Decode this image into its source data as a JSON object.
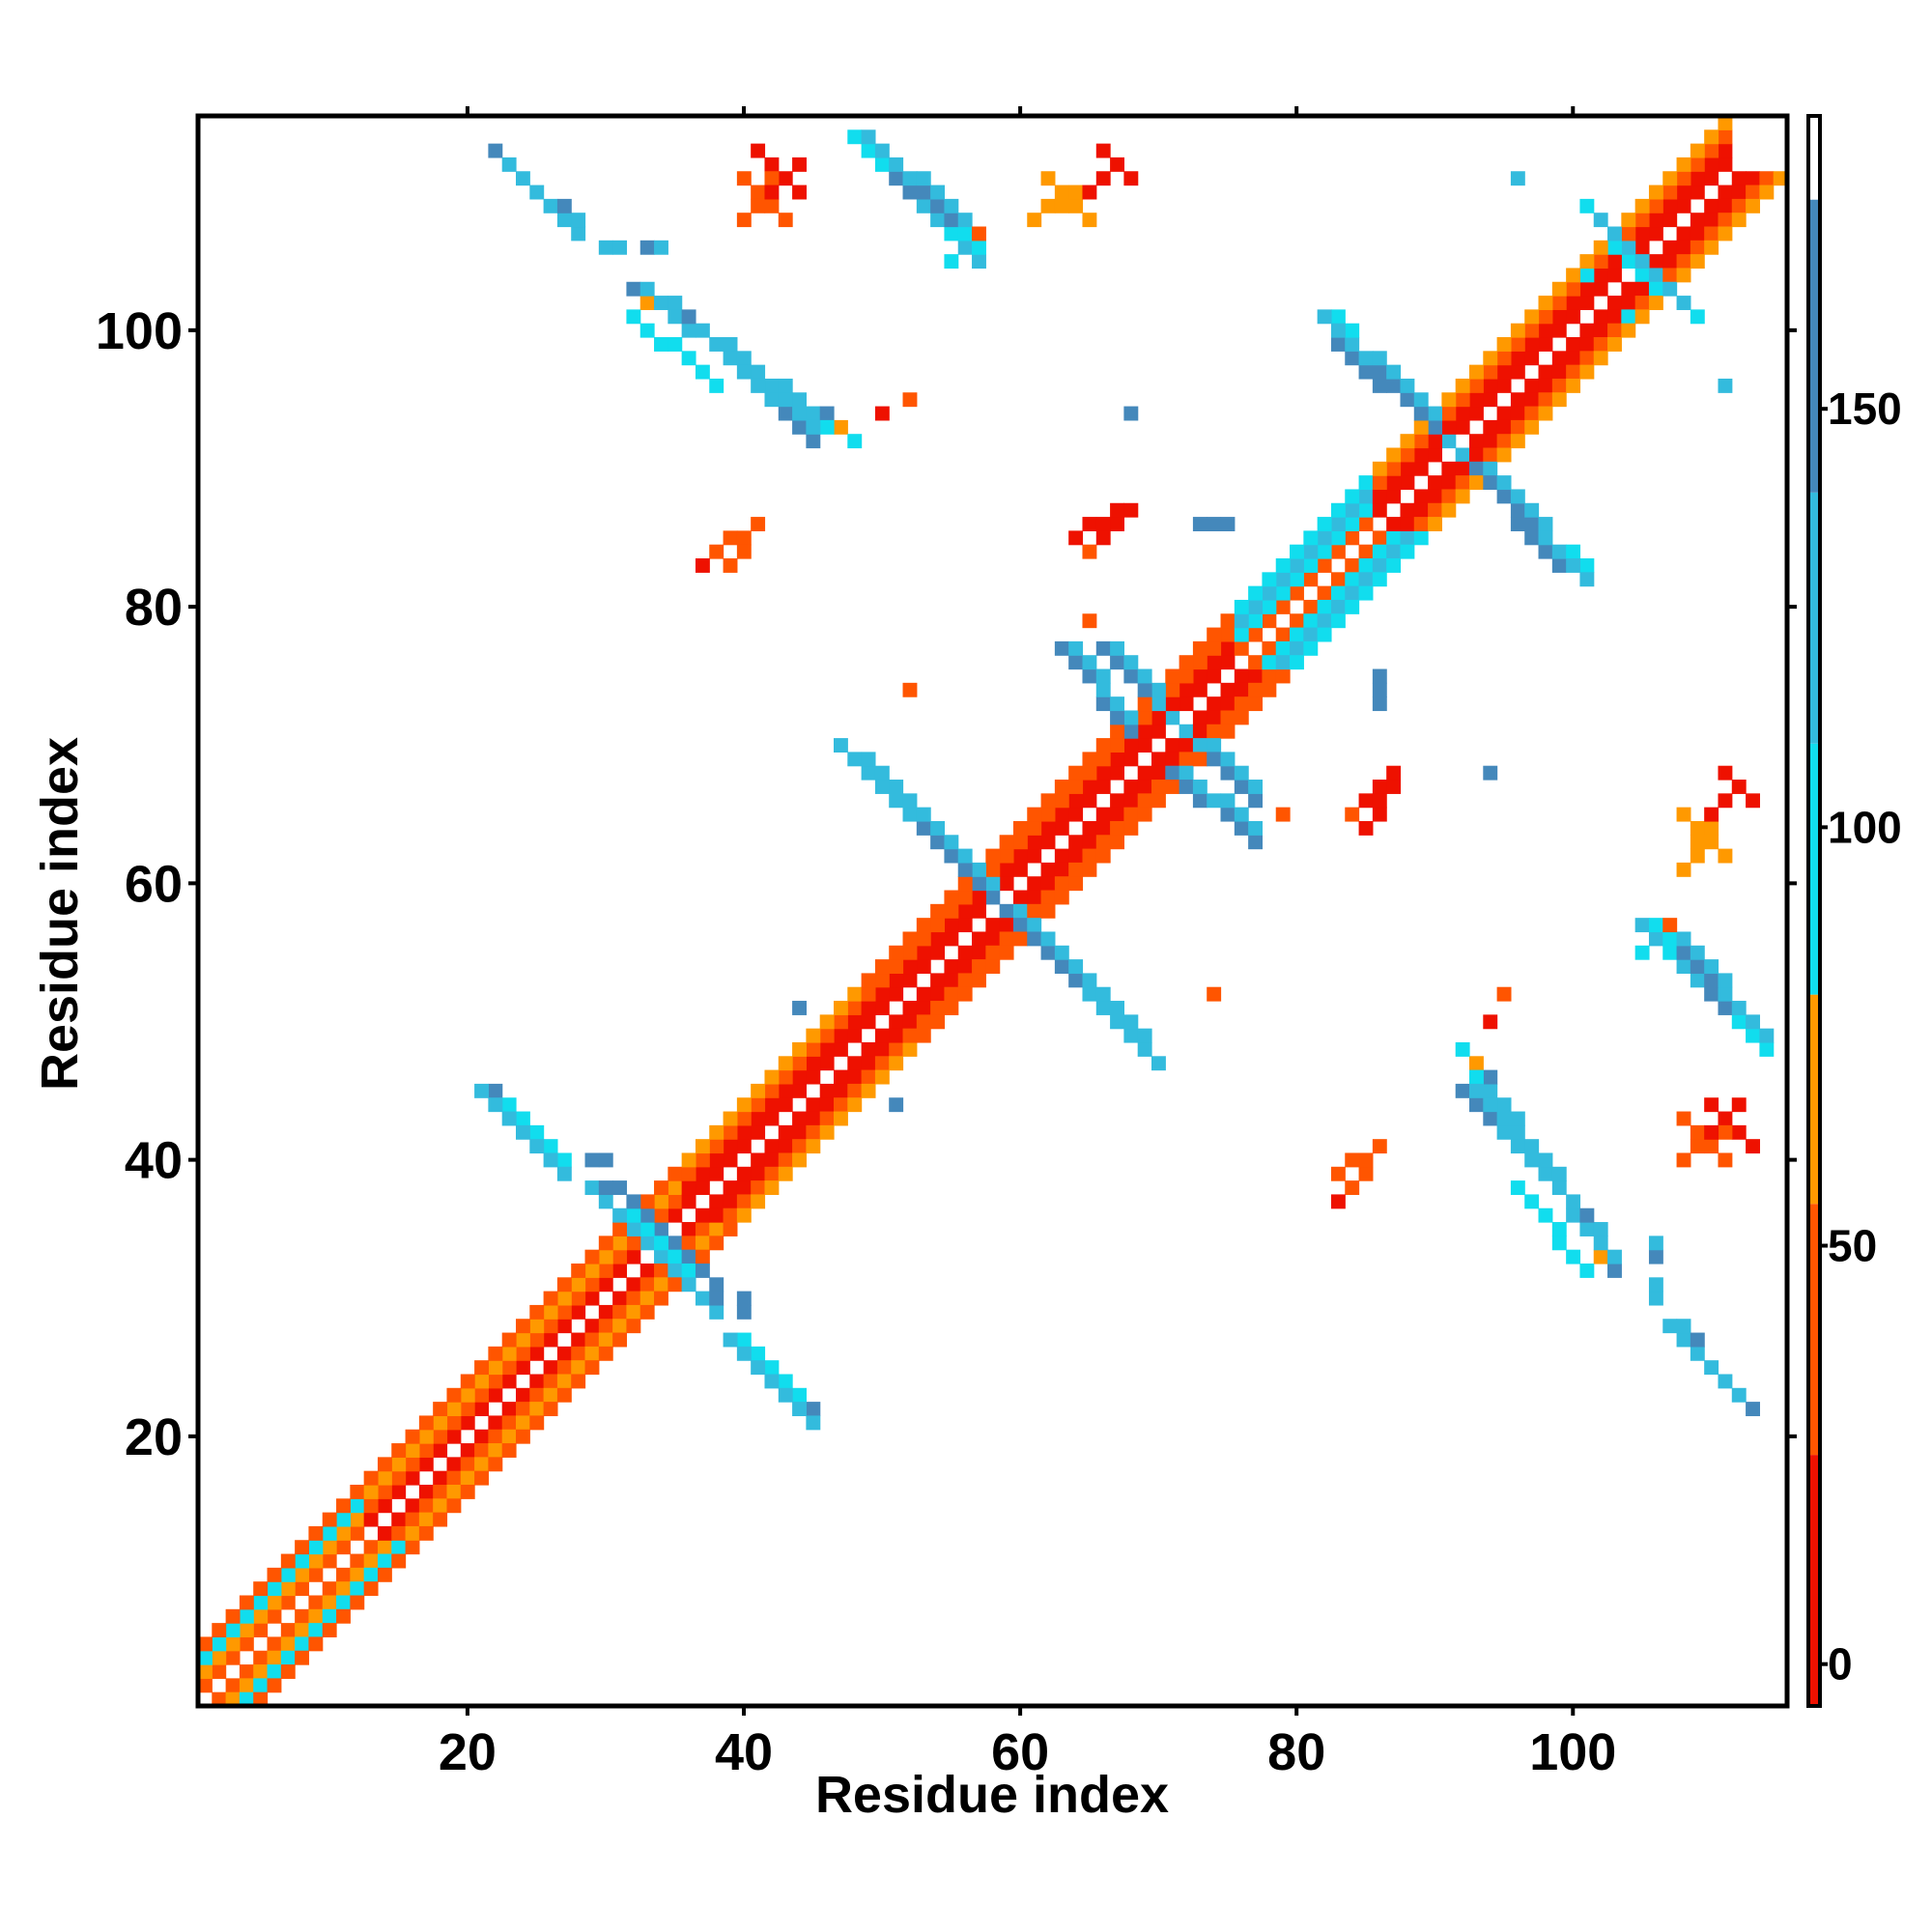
{
  "chart_data": {
    "type": "heatmap",
    "title": "",
    "xlabel": "Residue index",
    "ylabel": "Residue index",
    "xlim": [
      0.5,
      115.5
    ],
    "ylim": [
      0.5,
      115.5
    ],
    "x_ticks": [
      20,
      40,
      60,
      80,
      100
    ],
    "y_ticks": [
      20,
      40,
      60,
      80,
      100
    ],
    "colorbar": {
      "range": [
        -5,
        185
      ],
      "ticks": [
        0,
        50,
        100,
        150
      ],
      "bands": [
        {
          "from": -5,
          "to": 25,
          "color": "#ee1100"
        },
        {
          "from": 25,
          "to": 55,
          "color": "#ff5500"
        },
        {
          "from": 55,
          "to": 80,
          "color": "#ff9900"
        },
        {
          "from": 80,
          "to": 110,
          "color": "#11ddee"
        },
        {
          "from": 110,
          "to": 140,
          "color": "#33bbdd"
        },
        {
          "from": 140,
          "to": 175,
          "color": "#4488bb"
        },
        {
          "from": 175,
          "to": 185,
          "color": "#ffffff"
        }
      ]
    },
    "symmetric": true,
    "cell_value_by_class": {
      "r": 10,
      "o": 40,
      "y": 65,
      "c": 95,
      "t": 125,
      "b": 155
    },
    "palette": {
      "r": "#ee1100",
      "o": "#ff5500",
      "y": "#ff9900",
      "c": "#11ddee",
      "t": "#33bbdd",
      "b": "#4488bb"
    },
    "segments": [
      {
        "x": [
          1,
          12
        ],
        "y": [
          2,
          13
        ],
        "value_class": "o"
      },
      {
        "x": [
          1,
          12
        ],
        "y": [
          3,
          14
        ],
        "value_class": "y"
      },
      {
        "x": [
          1,
          12
        ],
        "y": [
          4,
          15
        ],
        "value_class": "c"
      },
      {
        "x": [
          1,
          12
        ],
        "y": [
          5,
          16
        ],
        "value_class": "o"
      },
      {
        "x": [
          13,
          35
        ],
        "y": [
          14,
          36
        ],
        "value_class": "r"
      },
      {
        "x": [
          13,
          35
        ],
        "y": [
          15,
          37
        ],
        "value_class": "o"
      },
      {
        "x": [
          13,
          35
        ],
        "y": [
          16,
          38
        ],
        "value_class": "y"
      },
      {
        "x": [
          13,
          35
        ],
        "y": [
          17,
          39
        ],
        "value_class": "o"
      },
      {
        "x": [
          36,
          48
        ],
        "y": [
          37,
          49
        ],
        "value_class": "r"
      },
      {
        "x": [
          36,
          48
        ],
        "y": [
          38,
          50
        ],
        "value_class": "r"
      },
      {
        "x": [
          36,
          48
        ],
        "y": [
          39,
          51
        ],
        "value_class": "o"
      },
      {
        "x": [
          36,
          48
        ],
        "y": [
          40,
          52
        ],
        "value_class": "y"
      },
      {
        "x": [
          49,
          75
        ],
        "y": [
          50,
          76
        ],
        "value_class": "r"
      },
      {
        "x": [
          49,
          75
        ],
        "y": [
          51,
          77
        ],
        "value_class": "r"
      },
      {
        "x": [
          49,
          75
        ],
        "y": [
          52,
          78
        ],
        "value_class": "o"
      },
      {
        "x": [
          49,
          75
        ],
        "y": [
          53,
          79
        ],
        "value_class": "o"
      },
      {
        "x": [
          76,
          85
        ],
        "y": [
          77,
          86
        ],
        "value_class": "o"
      },
      {
        "x": [
          76,
          85
        ],
        "y": [
          78,
          87
        ],
        "value_class": "c"
      },
      {
        "x": [
          76,
          85
        ],
        "y": [
          79,
          88
        ],
        "value_class": "t"
      },
      {
        "x": [
          76,
          85
        ],
        "y": [
          80,
          89
        ],
        "value_class": "c"
      },
      {
        "x": [
          86,
          111
        ],
        "y": [
          87,
          112
        ],
        "value_class": "r"
      },
      {
        "x": [
          86,
          111
        ],
        "y": [
          88,
          113
        ],
        "value_class": "r"
      },
      {
        "x": [
          86,
          111
        ],
        "y": [
          89,
          114
        ],
        "value_class": "o"
      },
      {
        "x": [
          86,
          111
        ],
        "y": [
          90,
          115
        ],
        "value_class": "y"
      },
      {
        "x": [
          22,
          26
        ],
        "y": [
          45,
          41
        ],
        "value_class": "b"
      },
      {
        "x": [
          23,
          27
        ],
        "y": [
          44,
          40
        ],
        "value_class": "t"
      },
      {
        "x": [
          22,
          27
        ],
        "y": [
          113,
          108
        ],
        "value_class": "b"
      },
      {
        "x": [
          23,
          28
        ],
        "y": [
          112,
          107
        ],
        "value_class": "t"
      },
      {
        "x": [
          31,
          35
        ],
        "y": [
          38,
          34
        ],
        "value_class": "b"
      },
      {
        "x": [
          32,
          35
        ],
        "y": [
          36,
          33
        ],
        "value_class": "c"
      },
      {
        "x": [
          34,
          38
        ],
        "y": [
          33,
          29
        ],
        "value_class": "t"
      },
      {
        "x": [
          39,
          45
        ],
        "y": [
          27,
          21
        ],
        "value_class": "t"
      },
      {
        "x": [
          40,
          44
        ],
        "y": [
          27,
          23
        ],
        "value_class": "c"
      },
      {
        "x": [
          32,
          47
        ],
        "y": [
          103,
          93
        ],
        "value_class": "b"
      },
      {
        "x": [
          33,
          48
        ],
        "y": [
          103,
          92
        ],
        "value_class": "t"
      },
      {
        "x": [
          32,
          38
        ],
        "y": [
          101,
          96
        ],
        "value_class": "c"
      },
      {
        "x": [
          48,
          56
        ],
        "y": [
          114,
          106
        ],
        "value_class": "b"
      },
      {
        "x": [
          49,
          57
        ],
        "y": [
          114,
          105
        ],
        "value_class": "t"
      },
      {
        "x": [
          48,
          50
        ],
        "y": [
          114,
          112
        ],
        "value_class": "c"
      },
      {
        "x": [
          48,
          57
        ],
        "y": [
          69,
          60
        ],
        "value_class": "b"
      },
      {
        "x": [
          49,
          58
        ],
        "y": [
          69,
          59
        ],
        "value_class": "t"
      },
      {
        "x": [
          48,
          51
        ],
        "y": [
          69,
          66
        ],
        "value_class": "c"
      },
      {
        "x": [
          59,
          69
        ],
        "y": [
          58,
          48
        ],
        "value_class": "b"
      },
      {
        "x": [
          60,
          70
        ],
        "y": [
          58,
          47
        ],
        "value_class": "t"
      },
      {
        "x": [
          66,
          71
        ],
        "y": [
          77,
          72
        ],
        "value_class": "b"
      },
      {
        "x": [
          67,
          72
        ],
        "y": [
          77,
          71
        ],
        "value_class": "t"
      },
      {
        "x": [
          71,
          77
        ],
        "y": [
          68,
          63
        ],
        "value_class": "b"
      },
      {
        "x": [
          72,
          77
        ],
        "y": [
          68,
          64
        ],
        "value_class": "t"
      },
      {
        "x": [
          83,
          91
        ],
        "y": [
          99,
          92
        ],
        "value_class": "b"
      },
      {
        "x": [
          84,
          92
        ],
        "y": [
          99,
          91
        ],
        "value_class": "t"
      },
      {
        "x": [
          83,
          85
        ],
        "y": [
          101,
          98
        ],
        "value_class": "c"
      },
      {
        "x": [
          93,
          100
        ],
        "y": [
          90,
          83
        ],
        "value_class": "b"
      },
      {
        "x": [
          94,
          101
        ],
        "y": [
          90,
          82
        ],
        "value_class": "t"
      },
      {
        "x": [
          92,
          101
        ],
        "y": [
          45,
          36
        ],
        "value_class": "b"
      },
      {
        "x": [
          93,
          102
        ],
        "y": [
          45,
          34
        ],
        "value_class": "t"
      },
      {
        "x": [
          92,
          93
        ],
        "y": [
          48,
          46
        ],
        "value_class": "c"
      },
      {
        "x": [
          107,
          113
        ],
        "y": [
          56,
          50
        ],
        "value_class": "b"
      },
      {
        "x": [
          108,
          114
        ],
        "y": [
          56,
          49
        ],
        "value_class": "t"
      },
      {
        "x": [
          106,
          107
        ],
        "y": [
          57,
          55
        ],
        "value_class": "c"
      },
      {
        "x": [
          110,
          112
        ],
        "y": [
          25,
          23
        ],
        "value_class": "t"
      },
      {
        "x": [
          103,
          109
        ],
        "y": [
          106,
          101
        ],
        "value_class": "c"
      },
      {
        "x": [
          104,
          108
        ],
        "y": [
          106,
          102
        ],
        "value_class": "t"
      },
      {
        "x": [
          40,
          43
        ],
        "y": [
          111,
          108
        ],
        "value_class": "o"
      },
      {
        "x": [
          41,
          44
        ],
        "y": [
          113,
          110
        ],
        "value_class": "r"
      },
      {
        "x": [
          62,
          65
        ],
        "y": [
          111,
          108
        ],
        "value_class": "y"
      },
      {
        "x": [
          66,
          68
        ],
        "y": [
          113,
          111
        ],
        "value_class": "r"
      },
      {
        "x": [
          38,
          41
        ],
        "y": [
          84,
          86
        ],
        "value_class": "o"
      },
      {
        "x": [
          65,
          67
        ],
        "y": [
          84,
          86
        ],
        "value_class": "o"
      },
      {
        "x": [
          66,
          68
        ],
        "y": [
          85,
          87
        ],
        "value_class": "r"
      },
      {
        "x": [
          83,
          86
        ],
        "y": [
          39,
          41
        ],
        "value_class": "o"
      },
      {
        "x": [
          85,
          87
        ],
        "y": [
          64,
          67
        ],
        "value_class": "r"
      },
      {
        "x": [
          108,
          110
        ],
        "y": [
          61,
          64
        ],
        "value_class": "y"
      },
      {
        "x": [
          110,
          112
        ],
        "y": [
          65,
          67
        ],
        "value_class": "r"
      },
      {
        "x": [
          108,
          111
        ],
        "y": [
          40,
          42
        ],
        "value_class": "o"
      },
      {
        "x": [
          110,
          112
        ],
        "y": [
          42,
          44
        ],
        "value_class": "r"
      }
    ],
    "cells": [
      {
        "x": 28,
        "y": 108,
        "value_class": "b"
      },
      {
        "x": 27,
        "y": 109,
        "value_class": "b"
      },
      {
        "x": 30,
        "y": 106,
        "value_class": "b"
      },
      {
        "x": 31,
        "y": 106,
        "value_class": "b"
      },
      {
        "x": 33,
        "y": 106,
        "value_class": "b"
      },
      {
        "x": 30,
        "y": 40,
        "value_class": "b"
      },
      {
        "x": 38,
        "y": 30,
        "value_class": "b"
      },
      {
        "x": 40,
        "y": 29,
        "value_class": "b"
      },
      {
        "x": 44,
        "y": 51,
        "value_class": "b"
      },
      {
        "x": 51,
        "y": 44,
        "value_class": "b"
      },
      {
        "x": 68,
        "y": 94,
        "value_class": "b"
      },
      {
        "x": 73,
        "y": 86,
        "value_class": "b"
      },
      {
        "x": 74,
        "y": 86,
        "value_class": "b"
      },
      {
        "x": 86,
        "y": 75,
        "value_class": "b"
      },
      {
        "x": 86,
        "y": 74,
        "value_class": "b"
      },
      {
        "x": 94,
        "y": 68,
        "value_class": "b"
      },
      {
        "x": 96,
        "y": 111,
        "value_class": "t"
      },
      {
        "x": 106,
        "y": 104,
        "value_class": "t"
      },
      {
        "x": 111,
        "y": 96,
        "value_class": "t"
      },
      {
        "x": 104,
        "y": 106,
        "value_class": "t"
      },
      {
        "x": 106,
        "y": 30,
        "value_class": "t"
      },
      {
        "x": 106,
        "y": 31,
        "value_class": "t"
      },
      {
        "x": 106,
        "y": 34,
        "value_class": "t"
      },
      {
        "x": 108,
        "y": 28,
        "value_class": "t"
      },
      {
        "x": 109,
        "y": 27,
        "value_class": "b"
      },
      {
        "x": 101,
        "y": 104,
        "value_class": "c"
      },
      {
        "x": 55,
        "y": 105,
        "value_class": "c"
      },
      {
        "x": 52,
        "y": 95,
        "value_class": "o"
      },
      {
        "x": 50,
        "y": 94,
        "value_class": "r"
      },
      {
        "x": 37,
        "y": 83,
        "value_class": "r"
      },
      {
        "x": 52,
        "y": 74,
        "value_class": "o"
      },
      {
        "x": 65,
        "y": 79,
        "value_class": "o"
      },
      {
        "x": 74,
        "y": 52,
        "value_class": "o"
      },
      {
        "x": 83,
        "y": 37,
        "value_class": "r"
      },
      {
        "x": 94,
        "y": 50,
        "value_class": "r"
      },
      {
        "x": 95,
        "y": 52,
        "value_class": "o"
      },
      {
        "x": 79,
        "y": 65,
        "value_class": "o"
      },
      {
        "x": 57,
        "y": 107,
        "value_class": "o"
      },
      {
        "x": 107,
        "y": 57,
        "value_class": "o"
      },
      {
        "x": 47,
        "y": 93,
        "value_class": "y"
      },
      {
        "x": 93,
        "y": 47,
        "value_class": "y"
      },
      {
        "x": 102,
        "y": 33,
        "value_class": "y"
      },
      {
        "x": 33,
        "y": 102,
        "value_class": "y"
      }
    ]
  }
}
